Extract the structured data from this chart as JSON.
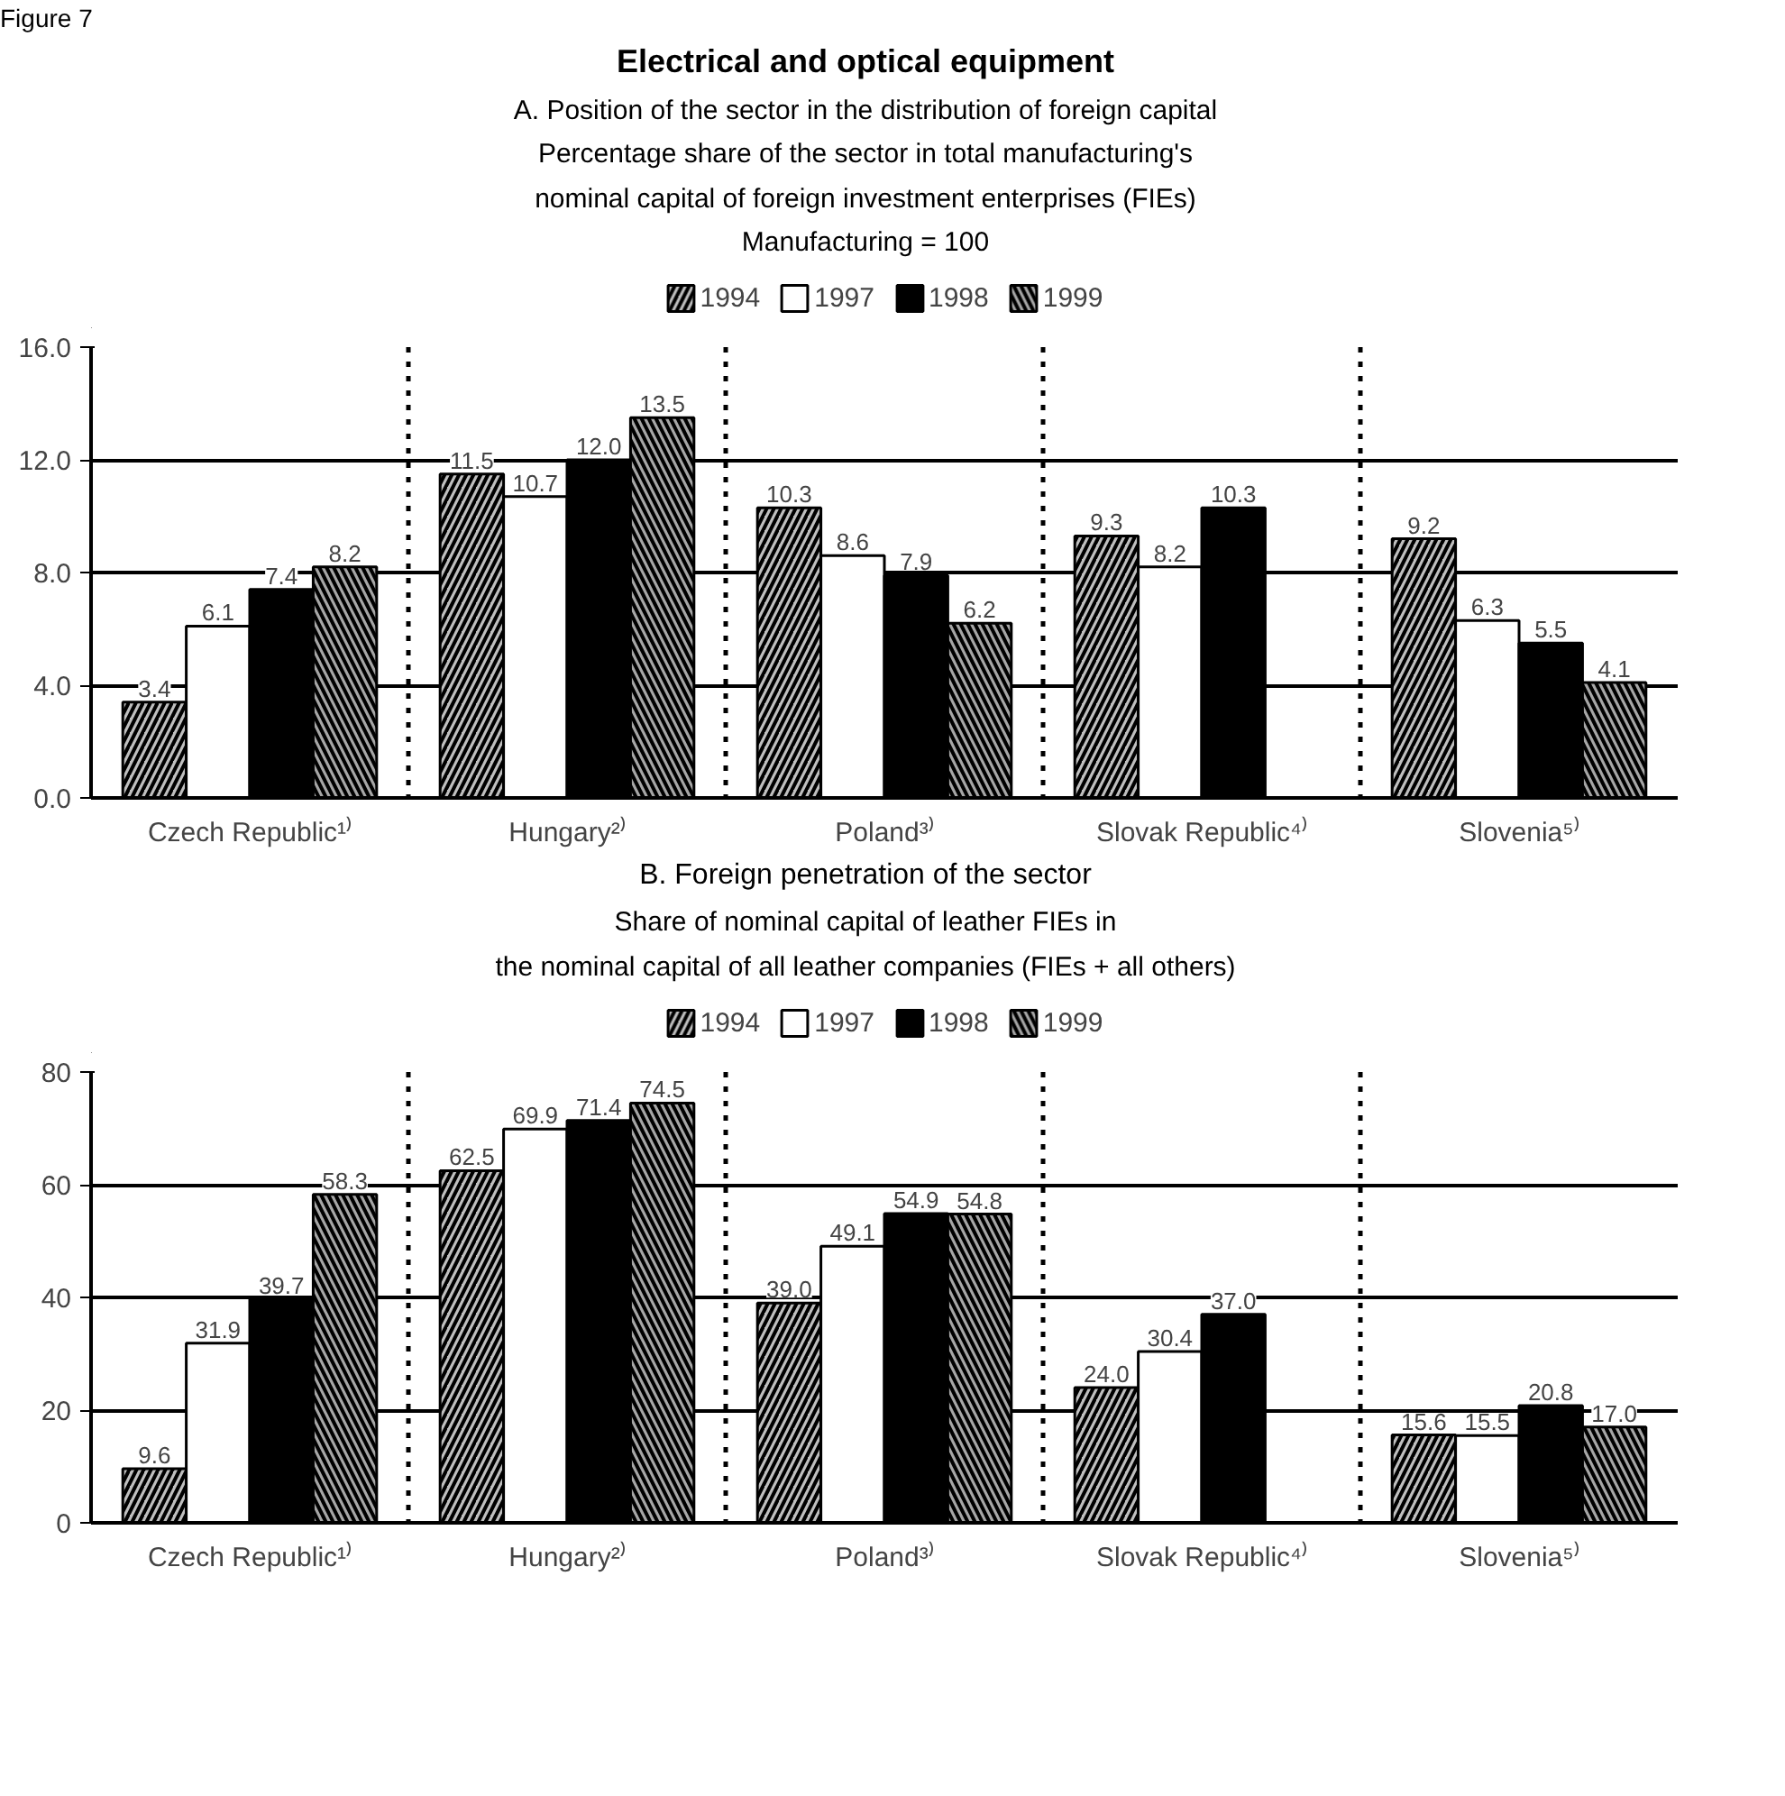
{
  "chart_data": [
    {
      "type": "bar",
      "title": "Electrical and optical equipment",
      "subtitle": "A. Position of the sector in the distribution of foreign capital\nPercentage share of the sector in total manufacturing's\nnominal capital of foreign investment enterprises (FIEs)\nManufacturing = 100",
      "annotations": [
        "Figure 7"
      ],
      "categories": [
        "Czech Republic¹⁾",
        "Hungary²⁾",
        "Poland³⁾",
        "Slovak Republic⁴⁾",
        "Slovenia⁵⁾"
      ],
      "series": [
        {
          "name": "1994",
          "color": "#bfbfbf",
          "values": [
            3.4,
            11.5,
            10.3,
            9.3,
            9.2
          ],
          "value_labels": [
            "3.4",
            "11.5",
            "10.3",
            "9.3",
            "9.2"
          ]
        },
        {
          "name": "1997",
          "color": "#ffffff",
          "values": [
            6.1,
            10.7,
            8.6,
            8.2,
            6.3
          ],
          "value_labels": [
            "6.1",
            "10.7",
            "8.6",
            "8.2",
            "6.3"
          ]
        },
        {
          "name": "1998",
          "color": "#000000",
          "values": [
            7.4,
            12.0,
            7.9,
            10.3,
            5.5
          ],
          "value_labels": [
            "7.4",
            "12.0",
            "7.9",
            "10.3",
            "5.5"
          ]
        },
        {
          "name": "1999",
          "color": "#a6a6a6",
          "values": [
            8.2,
            13.5,
            6.2,
            null,
            4.1
          ],
          "value_labels": [
            "8.2",
            "13.5",
            "6.2",
            null,
            "4.1"
          ]
        }
      ],
      "ylim": [
        0,
        16
      ],
      "yticks": [
        {
          "value": 0,
          "label": "0.0"
        },
        {
          "value": 4,
          "label": "4.0"
        },
        {
          "value": 8,
          "label": "8.0"
        },
        {
          "value": 12,
          "label": "12.0"
        },
        {
          "value": 16,
          "label": "16.0"
        }
      ],
      "grid": true,
      "legend": "top",
      "data_labels": true
    },
    {
      "type": "bar",
      "title": "B. Foreign penetration of the sector",
      "subtitle": "Share of nominal capital of leather FIEs in\nthe nominal capital of all leather companies (FIEs + all others)",
      "categories": [
        "Czech Republic¹⁾",
        "Hungary²⁾",
        "Poland³⁾",
        "Slovak Republic⁴⁾",
        "Slovenia⁵⁾"
      ],
      "series": [
        {
          "name": "1994",
          "color": "#bfbfbf",
          "values": [
            9.6,
            62.5,
            39.0,
            24.0,
            15.6
          ],
          "value_labels": [
            "9.6",
            "62.5",
            "39.0",
            "24.0",
            "15.6"
          ]
        },
        {
          "name": "1997",
          "color": "#ffffff",
          "values": [
            31.9,
            69.9,
            49.1,
            30.4,
            15.5
          ],
          "value_labels": [
            "31.9",
            "69.9",
            "49.1",
            "30.4",
            "15.5"
          ]
        },
        {
          "name": "1998",
          "color": "#000000",
          "values": [
            39.7,
            71.4,
            54.9,
            37.0,
            20.8
          ],
          "value_labels": [
            "39.7",
            "71.4",
            "54.9",
            "37.0",
            "20.8"
          ]
        },
        {
          "name": "1999",
          "color": "#a6a6a6",
          "values": [
            58.3,
            74.5,
            54.8,
            null,
            17.0
          ],
          "value_labels": [
            "58.3",
            "74.5",
            "54.8",
            null,
            "17.0"
          ]
        }
      ],
      "ylim": [
        0,
        80
      ],
      "yticks": [
        0,
        20,
        40,
        60,
        80
      ],
      "grid": true,
      "legend": "top",
      "data_labels": true
    }
  ]
}
